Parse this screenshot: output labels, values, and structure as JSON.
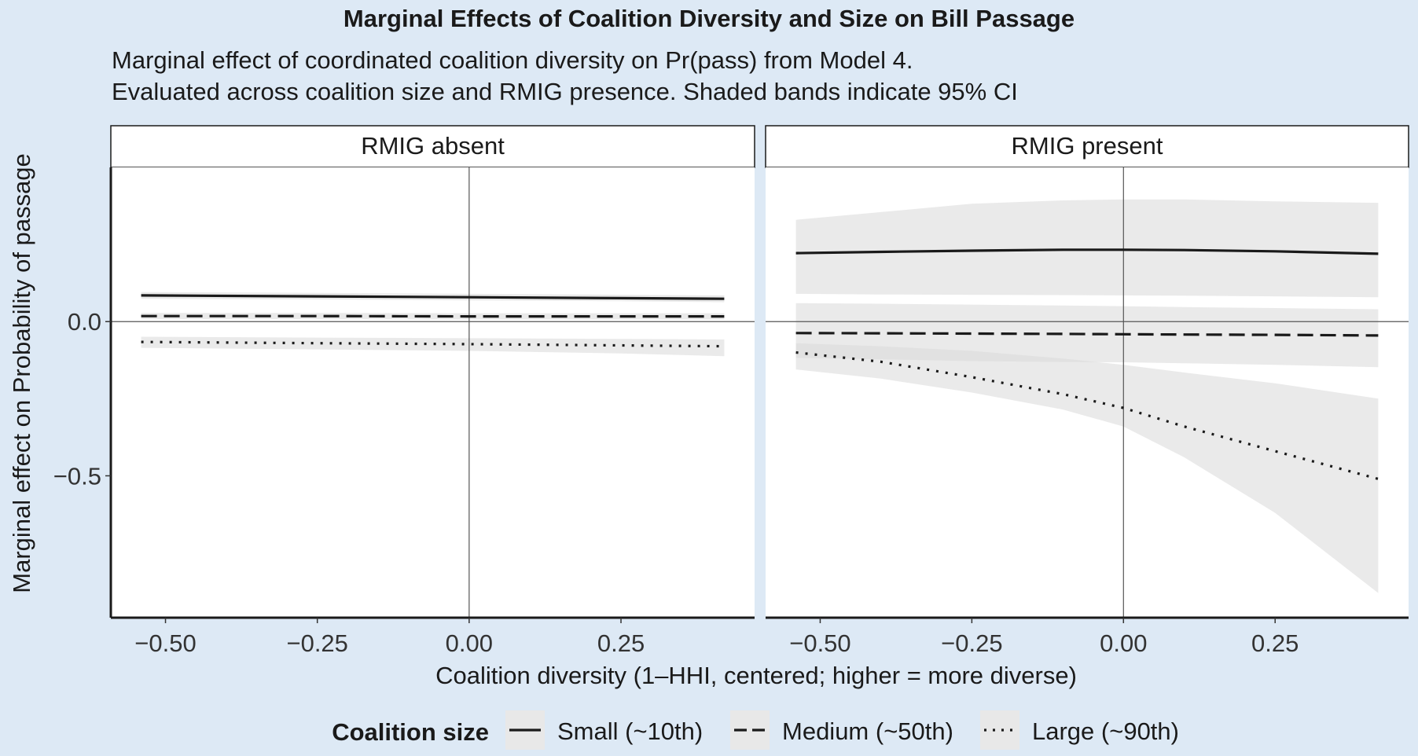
{
  "chart_data": {
    "type": "line",
    "title": "Marginal Effects of Coalition Diversity and Size on Bill Passage",
    "subtitle": [
      "Marginal effect of coordinated coalition diversity on Pr(pass) from Model 4.",
      "Evaluated across coalition size and RMIG presence. Shaded bands indicate 95% CI"
    ],
    "xlabel": "Coalition diversity (1–HHI, centered; higher = more diverse)",
    "ylabel": "Marginal effect on Probability of passage",
    "xlim": [
      -0.59,
      0.47
    ],
    "ylim": [
      -0.96,
      0.5
    ],
    "x_ticks": [
      -0.5,
      -0.25,
      0.0,
      0.25
    ],
    "x_tick_labels": [
      "−0.50",
      "−0.25",
      "0.00",
      "0.25"
    ],
    "y_ticks": [
      -0.5,
      0.0
    ],
    "y_tick_labels": [
      "−0.5",
      "0.0"
    ],
    "reference_lines": {
      "x": 0,
      "y": 0
    },
    "grid": false,
    "legend": {
      "title": "Coalition size",
      "position": "bottom",
      "entries": [
        {
          "label": "Small (~10th)",
          "linetype": "solid"
        },
        {
          "label": "Medium (~50th)",
          "linetype": "dashed"
        },
        {
          "label": "Large (~90th)",
          "linetype": "dotted"
        }
      ]
    },
    "colors": {
      "line": "#1a1a1a",
      "band": "#d9d9d9",
      "panel_bg": "#ffffff",
      "plot_bg": "#dde9f5"
    },
    "panels": [
      {
        "strip": "RMIG absent",
        "series": [
          {
            "name": "Small (~10th)",
            "linetype": "solid",
            "x": [
              -0.54,
              -0.25,
              0.0,
              0.25,
              0.42
            ],
            "y": [
              0.085,
              0.082,
              0.079,
              0.076,
              0.074
            ],
            "lower": [
              0.074,
              0.072,
              0.069,
              0.066,
              0.063
            ],
            "upper": [
              0.096,
              0.093,
              0.09,
              0.087,
              0.085
            ]
          },
          {
            "name": "Medium (~50th)",
            "linetype": "dashed",
            "x": [
              -0.54,
              -0.25,
              0.0,
              0.25,
              0.42
            ],
            "y": [
              0.018,
              0.018,
              0.017,
              0.017,
              0.017
            ],
            "lower": [
              0.008,
              0.008,
              0.007,
              0.007,
              0.007
            ],
            "upper": [
              0.028,
              0.028,
              0.027,
              0.027,
              0.027
            ]
          },
          {
            "name": "Large (~90th)",
            "linetype": "dotted",
            "x": [
              -0.54,
              -0.25,
              0.0,
              0.25,
              0.42
            ],
            "y": [
              -0.066,
              -0.07,
              -0.073,
              -0.077,
              -0.08
            ],
            "lower": [
              -0.085,
              -0.09,
              -0.095,
              -0.103,
              -0.112
            ],
            "upper": [
              -0.049,
              -0.052,
              -0.054,
              -0.056,
              -0.058
            ]
          }
        ]
      },
      {
        "strip": "RMIG present",
        "series": [
          {
            "name": "Small (~10th)",
            "linetype": "solid",
            "x": [
              -0.54,
              -0.4,
              -0.25,
              -0.1,
              0.0,
              0.1,
              0.25,
              0.42
            ],
            "y": [
              0.222,
              0.226,
              0.23,
              0.233,
              0.233,
              0.232,
              0.228,
              0.22
            ],
            "lower": [
              0.09,
              0.088,
              0.087,
              0.086,
              0.085,
              0.084,
              0.082,
              0.079
            ],
            "upper": [
              0.33,
              0.355,
              0.382,
              0.393,
              0.396,
              0.396,
              0.39,
              0.385
            ]
          },
          {
            "name": "Medium (~50th)",
            "linetype": "dashed",
            "x": [
              -0.54,
              -0.4,
              -0.25,
              -0.1,
              0.0,
              0.1,
              0.25,
              0.42
            ],
            "y": [
              -0.037,
              -0.038,
              -0.039,
              -0.04,
              -0.041,
              -0.042,
              -0.043,
              -0.045
            ],
            "lower": [
              -0.118,
              -0.122,
              -0.128,
              -0.131,
              -0.132,
              -0.135,
              -0.14,
              -0.148
            ],
            "upper": [
              0.06,
              0.058,
              0.055,
              0.052,
              0.05,
              0.047,
              0.044,
              0.04
            ]
          },
          {
            "name": "Large (~90th)",
            "linetype": "dotted",
            "x": [
              -0.54,
              -0.4,
              -0.25,
              -0.1,
              0.0,
              0.1,
              0.25,
              0.42
            ],
            "y": [
              -0.1,
              -0.13,
              -0.18,
              -0.235,
              -0.28,
              -0.34,
              -0.42,
              -0.51
            ],
            "lower": [
              -0.155,
              -0.185,
              -0.23,
              -0.285,
              -0.34,
              -0.44,
              -0.62,
              -0.88
            ],
            "upper": [
              -0.07,
              -0.08,
              -0.095,
              -0.12,
              -0.14,
              -0.165,
              -0.2,
              -0.25
            ]
          }
        ]
      }
    ]
  }
}
